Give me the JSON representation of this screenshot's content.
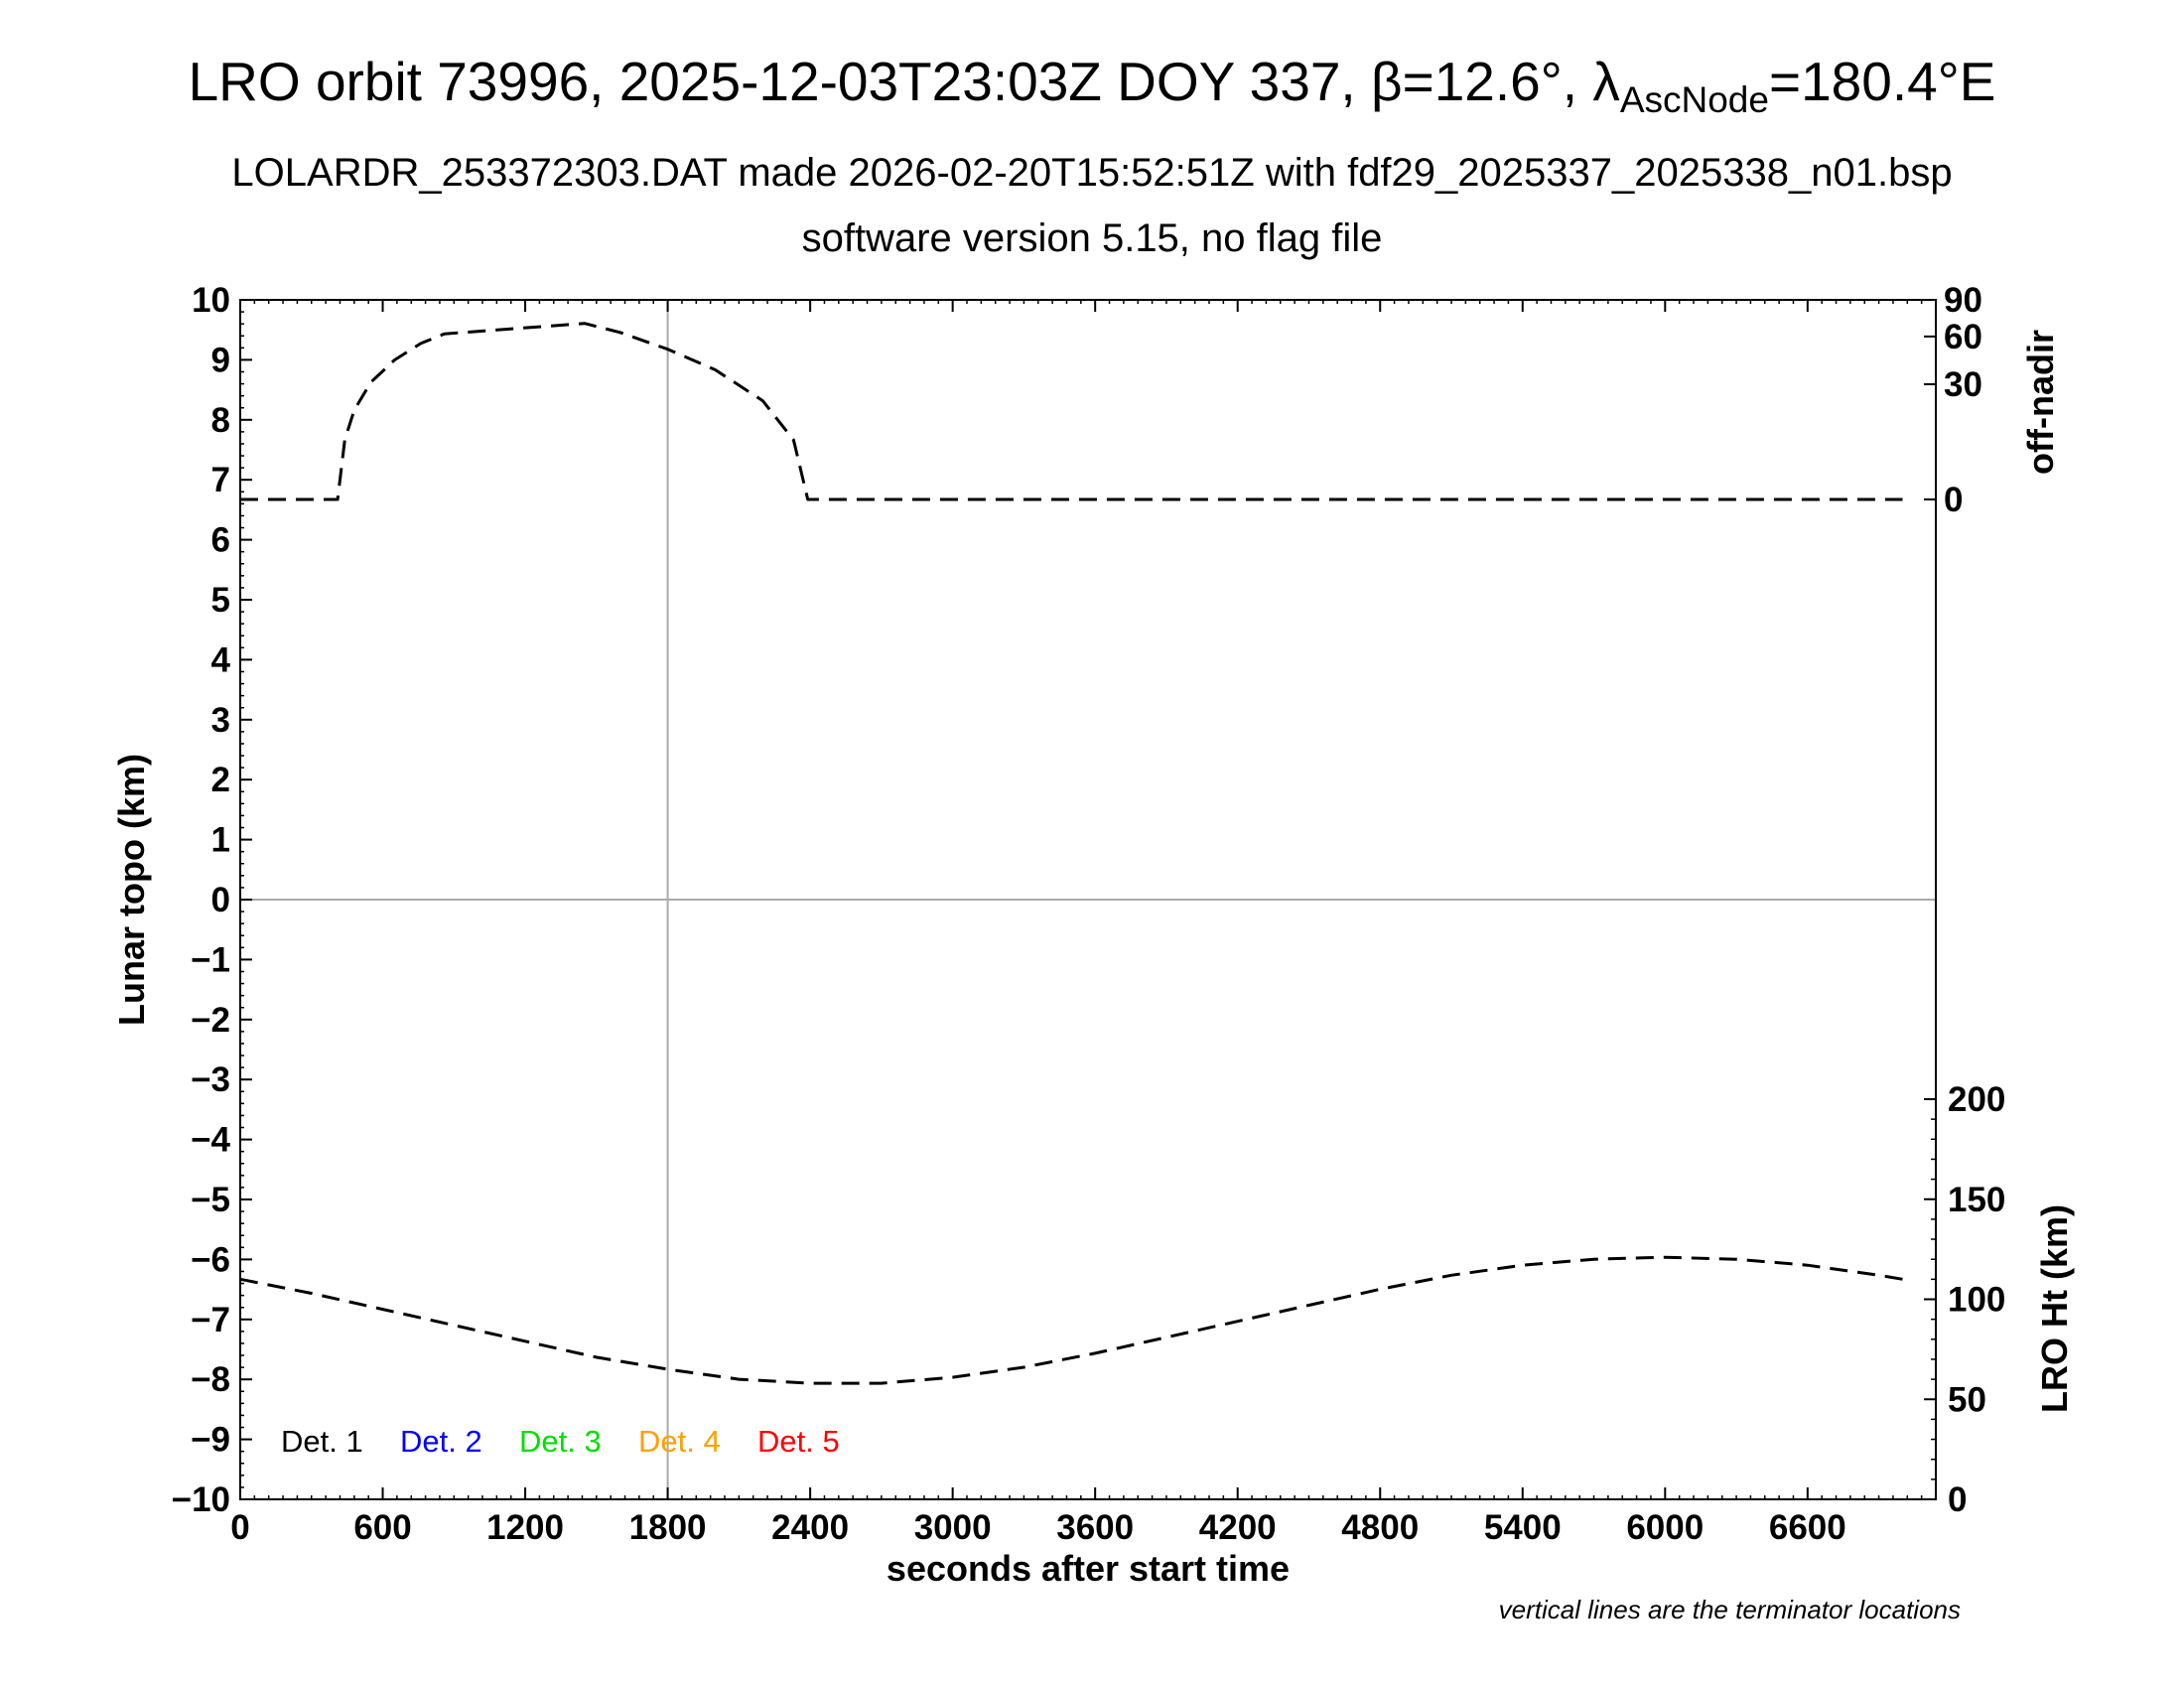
{
  "title": {
    "prefix": "LRO orbit 73996, 2025-12-03T23:03Z DOY 337, β=12.6°, λ",
    "subscript": "AscNode",
    "suffix": "=180.4°E"
  },
  "subtitle_line1": "LOLARDR_253372303.DAT made 2026-02-20T15:52:51Z with fdf29_2025337_2025338_n01.bsp",
  "subtitle_line2": "software version 5.15, no flag file",
  "footnote": "vertical lines are the terminator locations",
  "chart_data": {
    "type": "line",
    "xlabel": "seconds after start time",
    "ylabel_left": "Lunar topo (km)",
    "ylabel_right_top": "off-nadir",
    "ylabel_right_bottom": "LRO Ht (km)",
    "xlim": [
      0,
      7140
    ],
    "ylim_left": [
      -10,
      10
    ],
    "x_ticks": [
      "0",
      "600",
      "1200",
      "1800",
      "2400",
      "3000",
      "3600",
      "4200",
      "4800",
      "5400",
      "6000",
      "6600"
    ],
    "y_ticks_left": [
      "10",
      "9",
      "8",
      "7",
      "6",
      "5",
      "4",
      "3",
      "2",
      "1",
      "0",
      "−1",
      "−2",
      "−3",
      "−4",
      "−5",
      "−6",
      "−7",
      "−8",
      "−9",
      "−10"
    ],
    "right_top_axis": {
      "ticks": [
        "90",
        "60",
        "30",
        "0"
      ],
      "values": [
        90,
        60,
        30,
        0
      ]
    },
    "right_bottom_axis": {
      "ticks": [
        "200",
        "150",
        "100",
        "50",
        "0"
      ],
      "values": [
        200,
        150,
        100,
        50,
        0
      ],
      "lim": [
        0,
        200
      ]
    },
    "terminator_lines_x": [
      1800
    ],
    "zero_line_y": 0,
    "legend": [
      {
        "label": "Det. 1",
        "color": "#000000"
      },
      {
        "label": "Det. 2",
        "color": "#0000ff"
      },
      {
        "label": "Det. 3",
        "color": "#00e000"
      },
      {
        "label": "Det. 4",
        "color": "#ffa000"
      },
      {
        "label": "Det. 5",
        "color": "#ff0000"
      }
    ],
    "series": [
      {
        "axis": "off-nadir",
        "style": "dashed",
        "color": "#000000",
        "x": [
          0,
          410,
          440,
          480,
          550,
          650,
          760,
          860,
          1450,
          1600,
          1800,
          2000,
          2200,
          2330,
          2390,
          2420,
          2500,
          2650,
          3000,
          4000,
          5000,
          6000,
          7000
        ],
        "y": [
          0,
          0,
          8,
          18,
          31,
          44,
          55,
          62,
          70,
          63,
          51,
          38,
          22,
          8,
          0,
          0,
          0,
          0,
          0,
          0,
          0,
          0,
          0
        ]
      },
      {
        "axis": "LRO Ht",
        "style": "dashed",
        "color": "#000000",
        "x": [
          0,
          300,
          600,
          900,
          1200,
          1500,
          1800,
          2100,
          2400,
          2700,
          3000,
          3300,
          3600,
          3900,
          4200,
          4500,
          4800,
          5100,
          5400,
          5700,
          6000,
          6300,
          6600,
          6900,
          7000
        ],
        "y": [
          110,
          103,
          95,
          87,
          79,
          71,
          65,
          60,
          58,
          58,
          61,
          66,
          73,
          81,
          89,
          97,
          105,
          112,
          117,
          120,
          121,
          120,
          117,
          112,
          110
        ]
      }
    ]
  }
}
